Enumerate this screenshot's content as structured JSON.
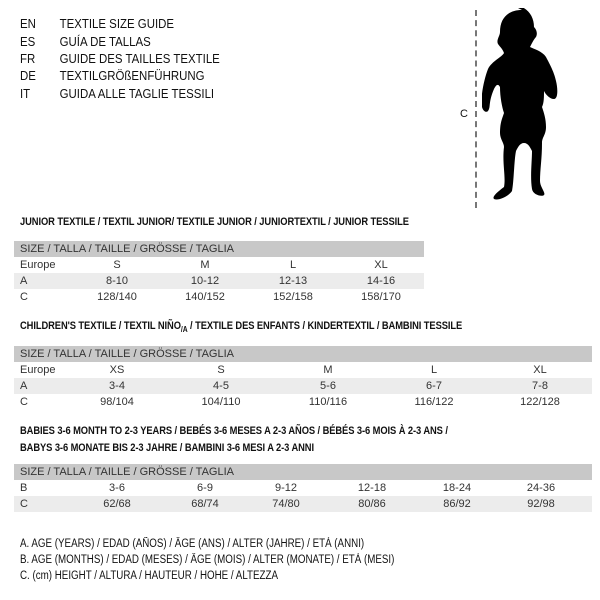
{
  "header": [
    {
      "code": "EN",
      "title": "TEXTILE SIZE GUIDE"
    },
    {
      "code": "ES",
      "title": "GUÍA DE TALLAS"
    },
    {
      "code": "FR",
      "title": "GUIDE DES TAILLES TEXTILE"
    },
    {
      "code": "DE",
      "title": "TEXTILGRÖßENFÜHRUNG"
    },
    {
      "code": "IT",
      "title": "GUIDA ALLE TAGLIE TESSILI"
    }
  ],
  "figure": {
    "label": "C",
    "icon": "child-silhouette"
  },
  "junior": {
    "title": "JUNIOR TEXTILE / TEXTIL JUNIOR/ TEXTILE JUNIOR / JUNIORTEXTIL / JUNIOR TESSILE",
    "header": "SIZE / TALLA / TAILLE / GRÖSSE / TAGLIA",
    "rows": [
      {
        "label": "Europe",
        "values": [
          "S",
          "M",
          "L",
          "XL"
        ]
      },
      {
        "label": "A",
        "values": [
          "8-10",
          "10-12",
          "12-13",
          "14-16"
        ]
      },
      {
        "label": "C",
        "values": [
          "128/140",
          "140/152",
          "152/158",
          "158/170"
        ]
      }
    ]
  },
  "children": {
    "title_a": "CHILDREN'S TEXTILE / TEXTIL NIÑO",
    "title_sub": "/A",
    "title_b": " / TEXTILE DES ENFANTS / KINDERTEXTIL / BAMBINI TESSILE",
    "header": "SIZE / TALLA / TAILLE / GRÖSSE / TAGLIA",
    "rows": [
      {
        "label": "Europe",
        "values": [
          "XS",
          "S",
          "M",
          "L",
          "XL"
        ]
      },
      {
        "label": "A",
        "values": [
          "3-4",
          "4-5",
          "5-6",
          "6-7",
          "7-8"
        ]
      },
      {
        "label": "C",
        "values": [
          "98/104",
          "104/110",
          "110/116",
          "116/122",
          "122/128"
        ]
      }
    ]
  },
  "babies": {
    "title_line1": "BABIES 3-6 MONTH TO 2-3 YEARS / BEBÉS 3-6 MESES A 2-3 AÑOS / BÉBÉS 3-6 MOIS À 2-3 ANS /",
    "title_line2": "BABYS 3-6 MONATE BIS 2-3 JAHRE / BAMBINI 3-6 MESI A 2-3 ANNI",
    "header": "SIZE / TALLA / TAILLE / GRÖSSE / TAGLIA",
    "rows": [
      {
        "label": "B",
        "values": [
          "3-6",
          "6-9",
          "9-12",
          "12-18",
          "18-24",
          "24-36"
        ]
      },
      {
        "label": "C",
        "values": [
          "62/68",
          "68/74",
          "74/80",
          "80/86",
          "86/92",
          "92/98"
        ]
      }
    ]
  },
  "legend": [
    "A. AGE (YEARS) / EDAD (AÑOS) / ÂGE (ANS) / ALTER (JAHRE) / ETÀ (ANNI)",
    "B. AGE (MONTHS) / EDAD (MESES) / ÂGE (MOIS) / ALTER (MONATE) / ETÀ (MESI)",
    "C. (cm) HEIGHT / ALTURA / HAUTEUR / HÖHE / ALTEZZA"
  ]
}
